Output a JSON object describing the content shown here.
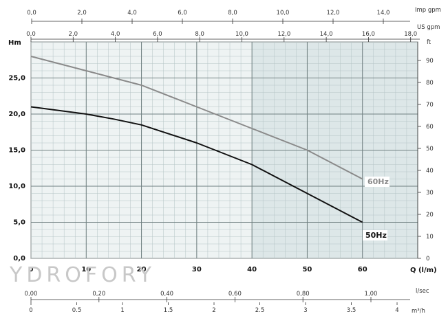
{
  "chart_data": {
    "type": "line",
    "xlabel": "Q (l/m)",
    "ylabel": "Hm",
    "xlim": [
      0,
      70
    ],
    "ylim": [
      0,
      30
    ],
    "x_ticks": [
      "0",
      "10",
      "20",
      "30",
      "40",
      "50",
      "60"
    ],
    "y_ticks": [
      "0,0",
      "5,0",
      "10,0",
      "15,0",
      "20,0",
      "25,0"
    ],
    "grid": true,
    "series": [
      {
        "name": "60Hz",
        "color": "#8a8a8a",
        "x": [
          0,
          10,
          15,
          20,
          30,
          40,
          50,
          60
        ],
        "y": [
          28.0,
          26.0,
          25.0,
          24.0,
          21.0,
          18.0,
          15.0,
          11.0
        ]
      },
      {
        "name": "50Hz",
        "color": "#111111",
        "x": [
          0,
          10,
          15,
          20,
          30,
          40,
          50,
          60
        ],
        "y": [
          21.0,
          20.0,
          19.3,
          18.5,
          16.0,
          13.0,
          9.0,
          5.0
        ]
      }
    ],
    "secondary_axes": {
      "imp_gpm": {
        "label": "Imp gpm",
        "ticks": [
          "0,0",
          "2,0",
          "4,0",
          "6,0",
          "8,0",
          "10,0",
          "12,0",
          "14,0"
        ]
      },
      "us_gpm": {
        "label": "US gpm",
        "ticks": [
          "0,0",
          "2,0",
          "4,0",
          "6,0",
          "8,0",
          "10,0",
          "12,0",
          "14,0",
          "16,0",
          "18,0"
        ]
      },
      "ft": {
        "label": "ft",
        "ticks": [
          "0",
          "10",
          "20",
          "30",
          "40",
          "50",
          "60",
          "70",
          "80",
          "90"
        ]
      },
      "l_sec": {
        "label": "l/sec",
        "ticks": [
          "0,00",
          "0,20",
          "0,40",
          "0,60",
          "0,80",
          "1,00"
        ]
      },
      "m3_h": {
        "label": "m³/h",
        "ticks": [
          "0",
          "0.5",
          "1",
          "1.5",
          "2",
          "2.5",
          "3",
          "3.5",
          "4"
        ]
      }
    },
    "annotations": {
      "watermark": "YDROFORY"
    }
  }
}
